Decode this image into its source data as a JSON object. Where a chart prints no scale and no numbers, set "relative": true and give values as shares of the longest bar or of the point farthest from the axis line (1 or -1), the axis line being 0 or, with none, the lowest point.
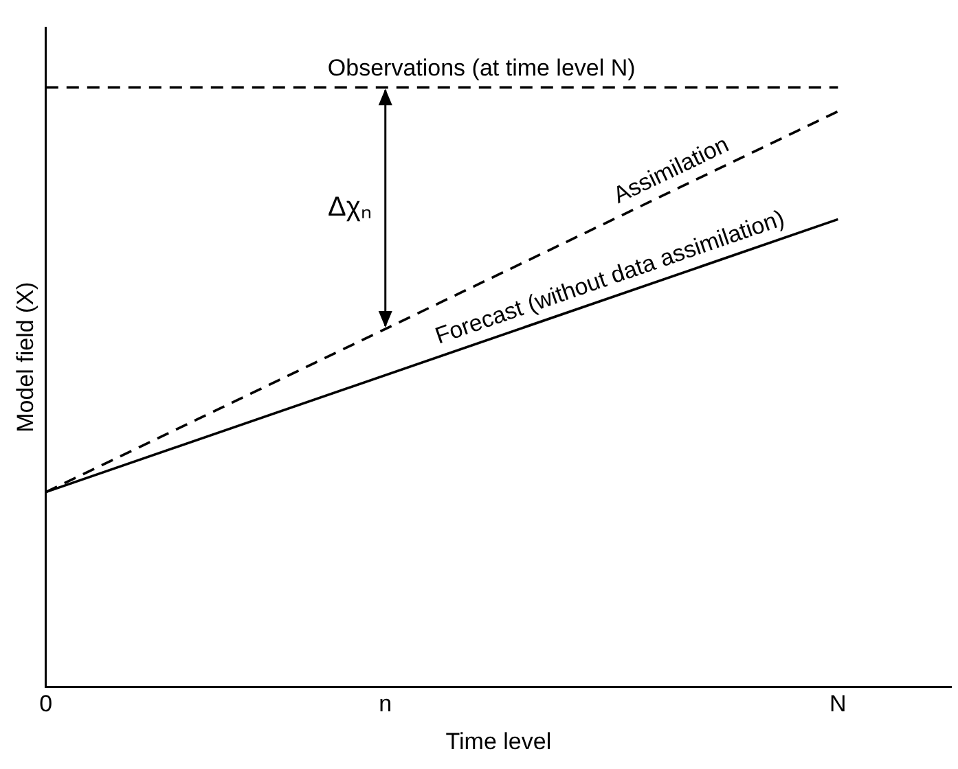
{
  "chart_data": {
    "type": "line",
    "relative": true,
    "xlabel": "Time level",
    "ylabel": "Model field (X)",
    "categories": [
      "0",
      null,
      null,
      "n",
      null,
      null,
      null,
      "N",
      null
    ],
    "series": [
      {
        "name": "Observations (at time level N)",
        "color": "#000000",
        "line_style": "dashed",
        "values": [
          1,
          null,
          null,
          null,
          null,
          null,
          null,
          1,
          null
        ]
      },
      {
        "name": "Assimilation",
        "color": "#000000",
        "line_style": "dashed",
        "values": [
          0.325,
          null,
          null,
          null,
          null,
          null,
          null,
          0.96,
          null
        ]
      },
      {
        "name": "Forecast (without data assimilation)",
        "color": "#000000",
        "line_style": "solid",
        "values": [
          0.325,
          null,
          null,
          null,
          null,
          null,
          null,
          0.78,
          null
        ]
      }
    ],
    "annotations": [
      "Δχₙ"
    ],
    "grid": false,
    "legend": false,
    "marker": "none"
  }
}
